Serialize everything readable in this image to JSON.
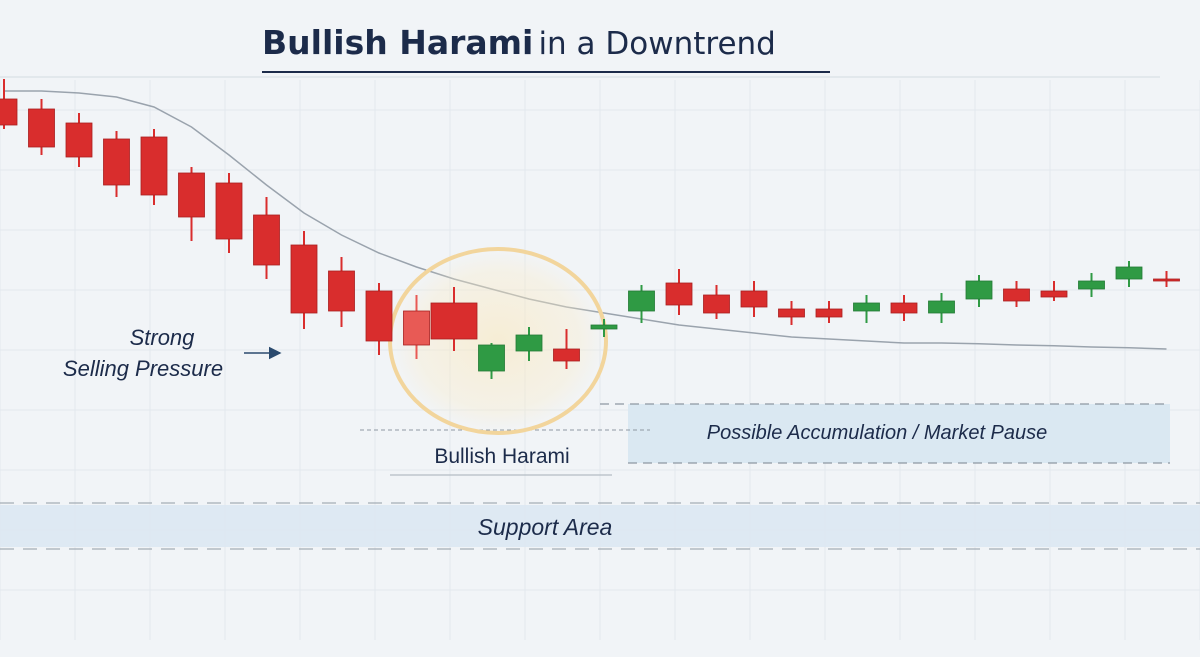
{
  "title": {
    "bold": "Bullish Harami",
    "rest": "in a Downtrend"
  },
  "colors": {
    "bearish": "#d92d2d",
    "bullish": "#2f9a44",
    "harami_bearish": "#e85a55",
    "background": "#f1f4f7",
    "zone": "#dce9f3",
    "highlight_ring": "#f4d9a3",
    "trend_line": "#9aa3ad"
  },
  "chart_data": {
    "type": "candlestick",
    "xlabel": "",
    "ylabel": "",
    "grid": true,
    "candles": [
      {
        "o": 94.0,
        "h": 99.0,
        "l": 86.5,
        "c": 87.5
      },
      {
        "o": 91.5,
        "h": 94.0,
        "l": 80.0,
        "c": 82.0
      },
      {
        "o": 88.0,
        "h": 90.5,
        "l": 77.0,
        "c": 79.5
      },
      {
        "o": 84.0,
        "h": 86.0,
        "l": 69.5,
        "c": 72.5
      },
      {
        "o": 84.5,
        "h": 86.5,
        "l": 67.5,
        "c": 70.0
      },
      {
        "o": 75.5,
        "h": 77.0,
        "l": 58.5,
        "c": 64.5
      },
      {
        "o": 73.0,
        "h": 75.5,
        "l": 55.5,
        "c": 59.0
      },
      {
        "o": 65.0,
        "h": 69.5,
        "l": 49.0,
        "c": 52.5
      },
      {
        "o": 57.5,
        "h": 61.0,
        "l": 36.5,
        "c": 40.5
      },
      {
        "o": 51.0,
        "h": 54.5,
        "l": 37.0,
        "c": 41.0
      },
      {
        "o": 46.0,
        "h": 48.0,
        "l": 30.0,
        "c": 33.5
      },
      {
        "o": 41.0,
        "h": 45.0,
        "l": 29.0,
        "c": 32.5
      },
      {
        "o": 43.0,
        "h": 47.0,
        "l": 31.0,
        "c": 34.0
      },
      {
        "o": 26.0,
        "h": 33.0,
        "l": 24.0,
        "c": 32.5
      },
      {
        "o": 31.0,
        "h": 37.0,
        "l": 28.5,
        "c": 35.0
      },
      {
        "o": 31.5,
        "h": 36.5,
        "l": 26.5,
        "c": 28.5
      },
      {
        "o": 36.5,
        "h": 39.0,
        "l": 34.5,
        "c": 37.5
      },
      {
        "o": 41.0,
        "h": 47.5,
        "l": 38.0,
        "c": 46.0
      },
      {
        "o": 48.0,
        "h": 51.5,
        "l": 40.0,
        "c": 42.5
      },
      {
        "o": 45.0,
        "h": 47.5,
        "l": 39.0,
        "c": 40.5
      },
      {
        "o": 46.0,
        "h": 48.5,
        "l": 39.5,
        "c": 42.0
      },
      {
        "o": 41.5,
        "h": 43.5,
        "l": 37.5,
        "c": 39.5
      },
      {
        "o": 41.5,
        "h": 43.5,
        "l": 38.0,
        "c": 39.5
      },
      {
        "o": 41.0,
        "h": 45.0,
        "l": 38.0,
        "c": 43.0
      },
      {
        "o": 43.0,
        "h": 45.0,
        "l": 38.5,
        "c": 40.5
      },
      {
        "o": 40.5,
        "h": 45.5,
        "l": 38.0,
        "c": 43.5
      },
      {
        "o": 44.0,
        "h": 50.0,
        "l": 42.0,
        "c": 48.5
      },
      {
        "o": 46.5,
        "h": 48.5,
        "l": 42.0,
        "c": 43.5
      },
      {
        "o": 46.0,
        "h": 48.5,
        "l": 43.5,
        "c": 44.5
      },
      {
        "o": 46.5,
        "h": 50.5,
        "l": 44.5,
        "c": 48.5
      },
      {
        "o": 49.0,
        "h": 53.5,
        "l": 47.0,
        "c": 52.0
      },
      {
        "o": 49.0,
        "h": 51.0,
        "l": 47.0,
        "c": 49.0
      }
    ],
    "harami_candles": [
      12,
      13
    ],
    "trend_line": [
      96,
      96,
      95.5,
      94.5,
      92,
      87,
      80,
      72.5,
      65.5,
      60,
      55.5,
      52,
      49,
      46.5,
      44,
      42,
      40.5,
      39,
      37.5,
      36.5,
      35.5,
      34.5,
      34,
      33.5,
      33,
      33,
      32.8,
      32.5,
      32.3,
      32,
      31.8,
      31.5
    ],
    "annotations": [
      {
        "key": "strong_selling",
        "line1": "Strong",
        "line2": "Selling Pressure"
      },
      {
        "key": "bullish_harami",
        "text": "Bullish Harami"
      },
      {
        "key": "accumulation",
        "text": "Possible Accumulation / Market Pause"
      },
      {
        "key": "support",
        "text": "Support Area"
      }
    ]
  }
}
